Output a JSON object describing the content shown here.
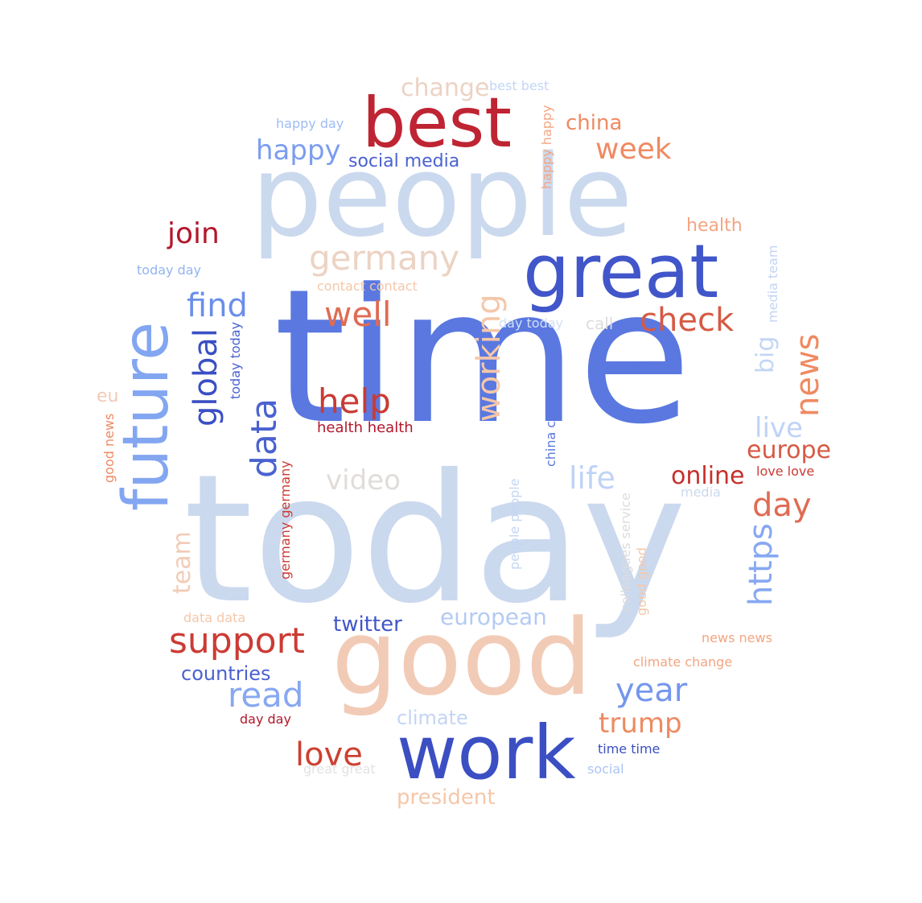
{
  "word_cloud": {
    "words": [
      {
        "text": "time",
        "color": "#5a78e0",
        "vertical": false
      },
      {
        "text": "today",
        "color": "#cbd9ee",
        "vertical": false
      },
      {
        "text": "people",
        "color": "#cbd9ee",
        "vertical": false
      },
      {
        "text": "good",
        "color": "#f2cbb6",
        "vertical": false
      },
      {
        "text": "work",
        "color": "#3b4fc3",
        "vertical": false
      },
      {
        "text": "great",
        "color": "#4156c9",
        "vertical": false
      },
      {
        "text": "best",
        "color": "#bf2433",
        "vertical": false
      },
      {
        "text": "future",
        "color": "#83a6f1",
        "vertical": true
      },
      {
        "text": "germany",
        "color": "#ecd3c4",
        "vertical": false
      },
      {
        "text": "well",
        "color": "#e06b53",
        "vertical": false
      },
      {
        "text": "check",
        "color": "#d65a45",
        "vertical": false
      },
      {
        "text": "help",
        "color": "#c93b35",
        "vertical": false
      },
      {
        "text": "support",
        "color": "#cc3b34",
        "vertical": false
      },
      {
        "text": "read",
        "color": "#87a8f2",
        "vertical": false
      },
      {
        "text": "year",
        "color": "#7596ee",
        "vertical": false
      },
      {
        "text": "trump",
        "color": "#ef8a62",
        "vertical": false
      },
      {
        "text": "love",
        "color": "#cc4032",
        "vertical": false
      },
      {
        "text": "day",
        "color": "#e06b53",
        "vertical": false
      },
      {
        "text": "week",
        "color": "#ef8a62",
        "vertical": false
      },
      {
        "text": "join",
        "color": "#b2182b",
        "vertical": false
      },
      {
        "text": "find",
        "color": "#6a8eea",
        "vertical": false
      },
      {
        "text": "happy",
        "color": "#7b9def",
        "vertical": false
      },
      {
        "text": "china",
        "color": "#ef8a62",
        "vertical": false
      },
      {
        "text": "change",
        "color": "#ecd3c4",
        "vertical": false
      },
      {
        "text": "social media",
        "color": "#4a62d0",
        "vertical": false
      },
      {
        "text": "happy day",
        "color": "#9dbcf4",
        "vertical": false
      },
      {
        "text": "best best",
        "color": "#c3d5f5",
        "vertical": false
      },
      {
        "text": "health",
        "color": "#f4a582",
        "vertical": false
      },
      {
        "text": "today day",
        "color": "#92b4f3",
        "vertical": false
      },
      {
        "text": "contact contact",
        "color": "#f5c7a9",
        "vertical": false
      },
      {
        "text": "day today",
        "color": "#d3e0f4",
        "vertical": false
      },
      {
        "text": "call",
        "color": "#dcdcdc",
        "vertical": false
      },
      {
        "text": "video",
        "color": "#e2dcd8",
        "vertical": false
      },
      {
        "text": "life",
        "color": "#bfd3f6",
        "vertical": false
      },
      {
        "text": "live",
        "color": "#bfd3f6",
        "vertical": false
      },
      {
        "text": "online",
        "color": "#c4302b",
        "vertical": false
      },
      {
        "text": "europe",
        "color": "#d65a45",
        "vertical": false
      },
      {
        "text": "love love",
        "color": "#cc3b34",
        "vertical": false
      },
      {
        "text": "media",
        "color": "#cbd9ee",
        "vertical": false
      },
      {
        "text": "health health",
        "color": "#b2182b",
        "vertical": false
      },
      {
        "text": "twitter",
        "color": "#4156c9",
        "vertical": false
      },
      {
        "text": "european",
        "color": "#b4cbf3",
        "vertical": false
      },
      {
        "text": "countries",
        "color": "#4a62d0",
        "vertical": false
      },
      {
        "text": "climate",
        "color": "#c3d5f5",
        "vertical": false
      },
      {
        "text": "president",
        "color": "#f5c7a9",
        "vertical": false
      },
      {
        "text": "day day",
        "color": "#b2182b",
        "vertical": false
      },
      {
        "text": "great great",
        "color": "#e2e2e2",
        "vertical": false
      },
      {
        "text": "time time",
        "color": "#3b4fc3",
        "vertical": false
      },
      {
        "text": "social",
        "color": "#abc5f4",
        "vertical": false
      },
      {
        "text": "climate change",
        "color": "#f4a582",
        "vertical": false
      },
      {
        "text": "news news",
        "color": "#f4a582",
        "vertical": false
      },
      {
        "text": "data data",
        "color": "#f5c7a9",
        "vertical": false
      },
      {
        "text": "eu",
        "color": "#f2cbb6",
        "vertical": false
      },
      {
        "text": "global",
        "color": "#3b4fc3",
        "vertical": true
      },
      {
        "text": "data",
        "color": "#4a62d0",
        "vertical": true
      },
      {
        "text": "working",
        "color": "#f5c7a9",
        "vertical": true
      },
      {
        "text": "https",
        "color": "#87a8f2",
        "vertical": true
      },
      {
        "text": "news",
        "color": "#ef8a62",
        "vertical": true
      },
      {
        "text": "big",
        "color": "#c3d5f5",
        "vertical": true
      },
      {
        "text": "team",
        "color": "#f2cbb6",
        "vertical": true
      },
      {
        "text": "today today",
        "color": "#4a62d0",
        "vertical": true
      },
      {
        "text": "germany germany",
        "color": "#cc3b34",
        "vertical": true
      },
      {
        "text": "good news",
        "color": "#ef8a62",
        "vertical": true
      },
      {
        "text": "china china",
        "color": "#5a78e0",
        "vertical": true
      },
      {
        "text": "people people",
        "color": "#c3d5f5",
        "vertical": true
      },
      {
        "text": "colleagues service",
        "color": "#dcdcdc",
        "vertical": true
      },
      {
        "text": "good good",
        "color": "#f5c7a9",
        "vertical": true
      },
      {
        "text": "happy happy",
        "color": "#f4a582",
        "vertical": true
      },
      {
        "text": "media team",
        "color": "#c3d5f5",
        "vertical": true
      }
    ]
  }
}
